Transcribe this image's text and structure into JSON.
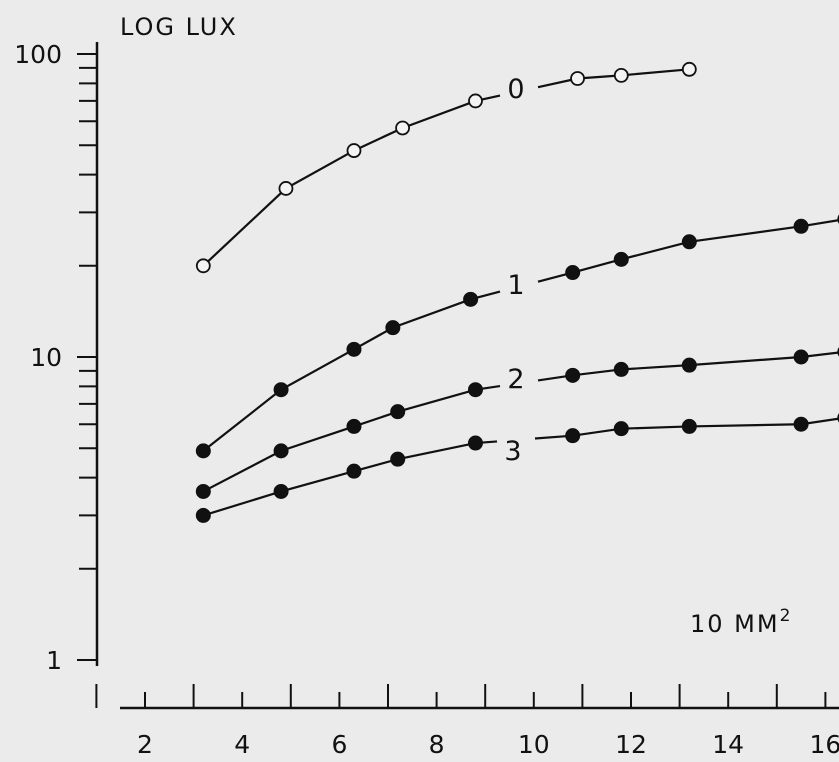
{
  "chart_data": {
    "type": "line",
    "ylabel": "LOG LUX",
    "xlabel": "10 MM",
    "xlabel_superscript": "2",
    "yscale": "log",
    "ylim": [
      1,
      100
    ],
    "xlim": [
      1,
      16
    ],
    "x_ticks": [
      2,
      4,
      6,
      8,
      10,
      12,
      14,
      16
    ],
    "y_tick_labels": [
      "100",
      "10",
      "1"
    ],
    "grid": false,
    "series": [
      {
        "name": "0",
        "marker": "open",
        "x": [
          3.2,
          4.9,
          6.3,
          7.3,
          8.8,
          10.9,
          11.8,
          13.2
        ],
        "y": [
          20,
          36,
          48,
          57,
          70,
          83,
          85,
          89
        ]
      },
      {
        "name": "1",
        "marker": "filled",
        "x": [
          3.2,
          4.8,
          6.3,
          7.1,
          8.7,
          10.8,
          11.8,
          13.2,
          15.5,
          16.4
        ],
        "y": [
          4.9,
          7.8,
          10.6,
          12.5,
          15.5,
          19,
          21,
          24,
          27,
          28.5
        ]
      },
      {
        "name": "2",
        "marker": "filled",
        "x": [
          3.2,
          4.8,
          6.3,
          7.2,
          8.8,
          10.8,
          11.8,
          13.2,
          15.5,
          16.4
        ],
        "y": [
          3.6,
          4.9,
          5.9,
          6.6,
          7.8,
          8.7,
          9.1,
          9.4,
          10,
          10.4
        ]
      },
      {
        "name": "3",
        "marker": "filled",
        "x": [
          3.2,
          4.8,
          6.3,
          7.2,
          8.8,
          10.8,
          11.8,
          13.2,
          15.5,
          16.4
        ],
        "y": [
          3,
          3.6,
          4.2,
          4.6,
          5.2,
          5.5,
          5.8,
          5.9,
          6,
          6.3
        ]
      }
    ]
  }
}
